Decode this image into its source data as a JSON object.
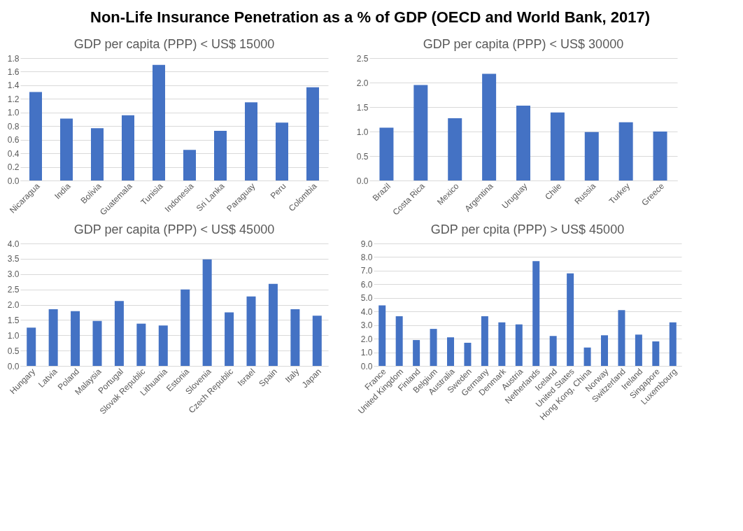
{
  "chart_data": [
    {
      "type": "other",
      "title": "Non-Life Insurance Penetration as a % of GDP (OECD and World Bank, 2017)"
    },
    {
      "type": "bar",
      "title": "GDP per capita (PPP) < US$ 15000",
      "color": "#4472c4",
      "grid": "y",
      "categories": [
        "Nicaragua",
        "India",
        "Bolivia",
        "Guatemala",
        "Tunisia",
        "Indonesia",
        "Sri Lanka",
        "Paraguay",
        "Peru",
        "Colombia"
      ],
      "values": [
        1.3,
        0.91,
        0.77,
        0.96,
        1.7,
        0.45,
        0.73,
        1.15,
        0.85,
        1.37
      ],
      "ylim": [
        0,
        1.8
      ],
      "yticks": [
        {
          "value": 0,
          "label": "0.0"
        },
        0.2,
        0.4,
        0.6,
        0.8,
        {
          "value": 1,
          "label": "1.0"
        },
        1.2,
        1.4,
        1.6,
        1.8
      ]
    },
    {
      "type": "bar",
      "title": "GDP per capita (PPP) < US$ 30000",
      "color": "#4472c4",
      "grid": "y",
      "categories": [
        "Brazil",
        "Costa Rica",
        "Mexico",
        "Argentina",
        "Uruguay",
        "Chile",
        "Russia",
        "Turkey",
        "Greece"
      ],
      "values": [
        1.08,
        1.95,
        1.27,
        2.18,
        1.53,
        1.39,
        0.99,
        1.19,
        1.0
      ],
      "ylim": [
        0,
        2.5
      ],
      "yticks": [
        {
          "value": 0,
          "label": "0.0"
        },
        0.5,
        {
          "value": 1,
          "label": "1.0"
        },
        1.5,
        {
          "value": 2,
          "label": "2.0"
        },
        2.5
      ]
    },
    {
      "type": "bar",
      "title": "GDP per capita (PPP) < US$ 45000",
      "color": "#4472c4",
      "grid": "y",
      "categories": [
        "Hungary",
        "Latvia",
        "Poland",
        "Malaysia",
        "Portugal",
        "Slovak Republic",
        "Lithuania",
        "Estonia",
        "Slovenia",
        "Czech Republic",
        "Israel",
        "Spain",
        "Italy",
        "Japan"
      ],
      "values": [
        1.25,
        1.85,
        1.79,
        1.47,
        2.12,
        1.38,
        1.32,
        2.5,
        3.48,
        1.75,
        2.27,
        2.68,
        1.85,
        1.64
      ],
      "ylim": [
        0,
        4.0
      ],
      "yticks": [
        {
          "value": 0,
          "label": "0.0"
        },
        0.5,
        {
          "value": 1,
          "label": "1.0"
        },
        1.5,
        {
          "value": 2,
          "label": "2.0"
        },
        2.5,
        {
          "value": 3,
          "label": "3.0"
        },
        3.5,
        {
          "value": 4,
          "label": "4.0"
        }
      ]
    },
    {
      "type": "bar",
      "title": "GDP per cpita (PPP) > US$ 45000",
      "color": "#4472c4",
      "grid": "y",
      "categories": [
        "France",
        "United Kingdom",
        "Finland",
        "Belgium",
        "Australia",
        "Sweden",
        "Germany",
        "Denmark",
        "Austria",
        "Netherlands",
        "Iceland",
        "United States",
        "Hong Kong, China",
        "Norway",
        "Switzerland",
        "Ireland",
        "Singapore",
        "Luxembourg"
      ],
      "values": [
        4.45,
        3.65,
        1.9,
        2.72,
        2.1,
        1.7,
        3.65,
        3.2,
        3.05,
        7.7,
        2.2,
        6.8,
        1.35,
        2.25,
        4.1,
        2.3,
        1.8,
        3.2
      ],
      "ylim": [
        0,
        9.0
      ],
      "yticks": [
        {
          "value": 0,
          "label": "0.0"
        },
        {
          "value": 1,
          "label": "1.0"
        },
        {
          "value": 2,
          "label": "2.0"
        },
        {
          "value": 3,
          "label": "3.0"
        },
        {
          "value": 4,
          "label": "4.0"
        },
        {
          "value": 5,
          "label": "5.0"
        },
        {
          "value": 6,
          "label": "6.0"
        },
        {
          "value": 7,
          "label": "7.0"
        },
        {
          "value": 8,
          "label": "8.0"
        },
        {
          "value": 9,
          "label": "9.0"
        }
      ]
    }
  ]
}
